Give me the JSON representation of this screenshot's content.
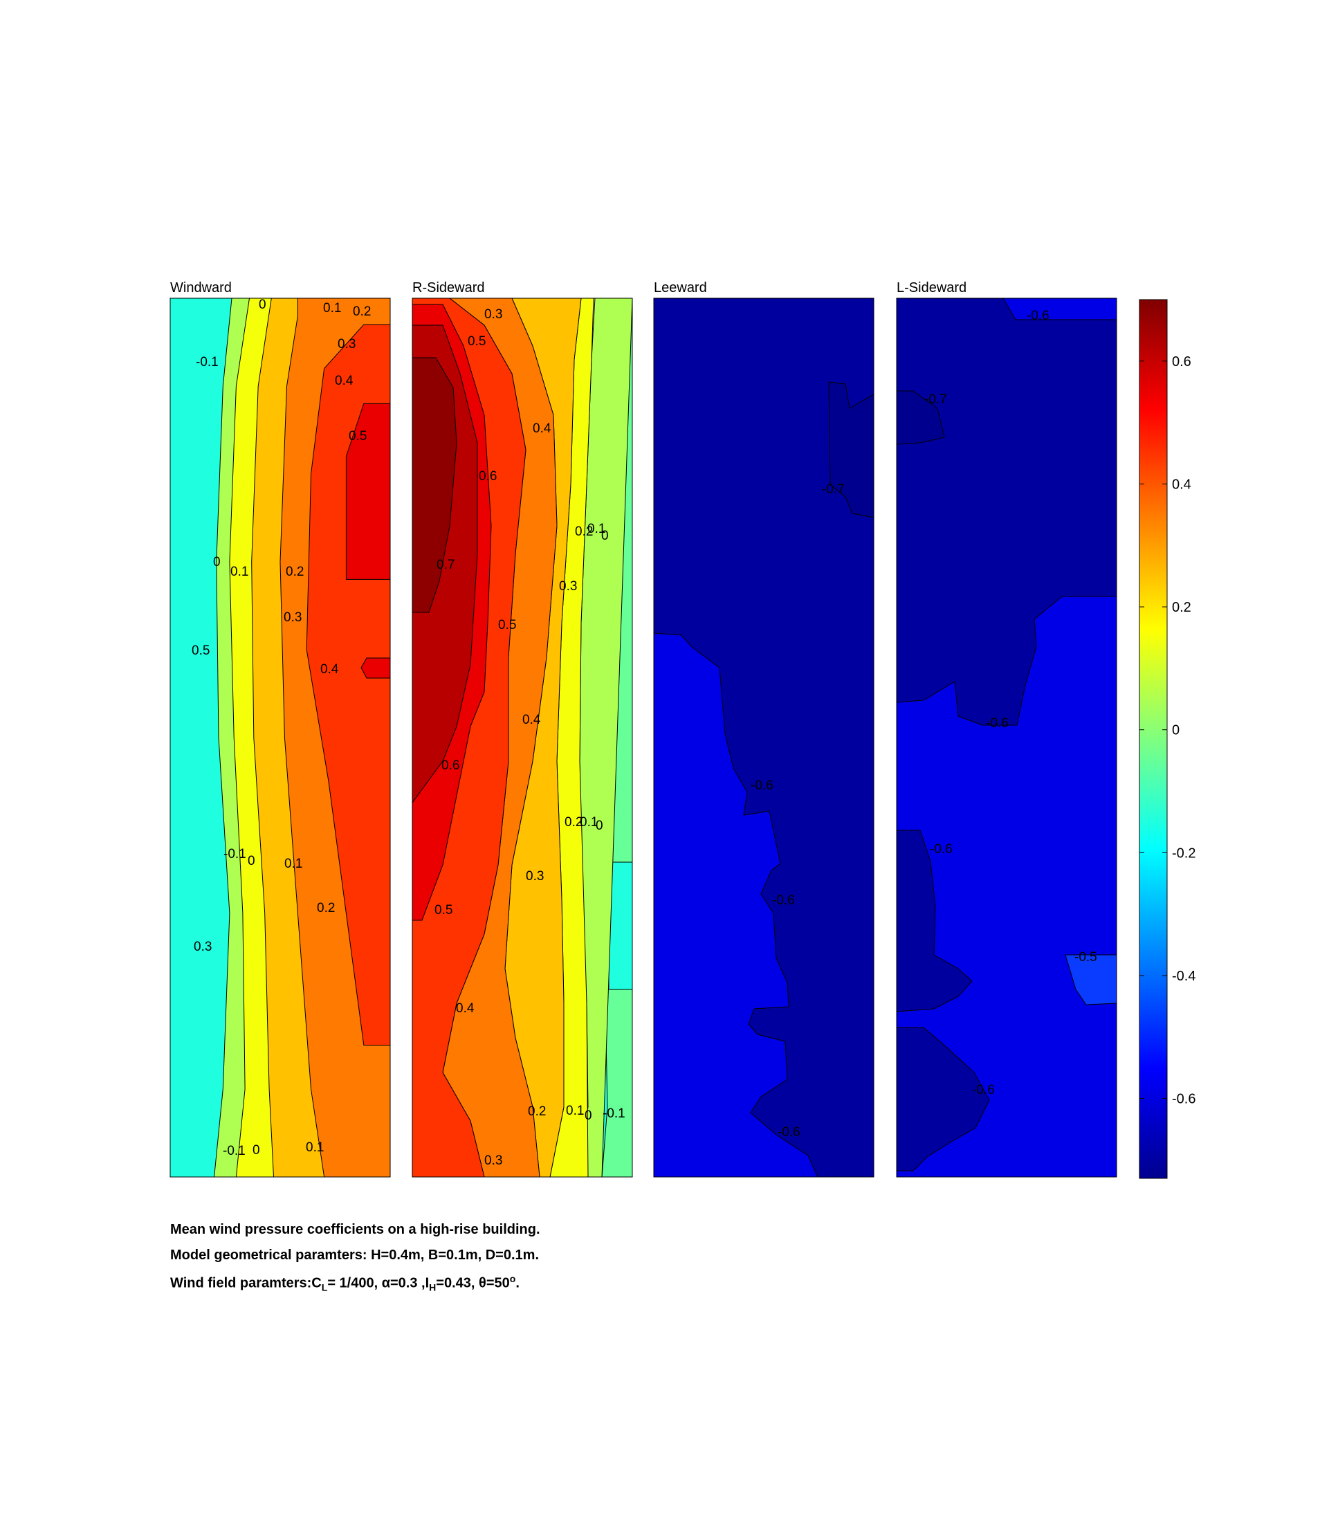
{
  "chart_data": {
    "type": "contour",
    "colormap": "jet",
    "clim": [
      -0.73,
      0.7
    ],
    "colorbar": {
      "ticks": [
        -0.6,
        -0.4,
        -0.2,
        0,
        0.2,
        0.4,
        0.6
      ],
      "tick_labels": [
        "-0.6",
        "-0.4",
        "-0.2",
        "0",
        "0.2",
        "0.4",
        "0.6"
      ]
    },
    "panels": [
      {
        "title": "Windward",
        "columns": [
          {
            "level": -0.15,
            "edge": [
              [
                0.2,
                0.0
              ],
              [
                0.18,
                0.1
              ],
              [
                0.16,
                0.3
              ],
              [
                0.15,
                0.5
              ],
              [
                0.17,
                0.7
              ],
              [
                0.16,
                0.9
              ],
              [
                0.11,
                1.0
              ]
            ]
          },
          {
            "level": -0.05,
            "edge": [
              [
                0.28,
                0.0
              ],
              [
                0.24,
                0.1
              ],
              [
                0.21,
                0.3
              ],
              [
                0.22,
                0.5
              ],
              [
                0.27,
                0.7
              ],
              [
                0.24,
                0.9
              ],
              [
                0.2,
                1.0
              ]
            ]
          },
          {
            "level": 0.05,
            "edge": [
              [
                0.36,
                0.0
              ],
              [
                0.3,
                0.1
              ],
              [
                0.27,
                0.3
              ],
              [
                0.29,
                0.5
              ],
              [
                0.33,
                0.7
              ],
              [
                0.34,
                0.9
              ],
              [
                0.3,
                1.0
              ]
            ]
          },
          {
            "level": 0.15,
            "edge": [
              [
                0.46,
                0.0
              ],
              [
                0.4,
                0.1
              ],
              [
                0.37,
                0.3
              ],
              [
                0.38,
                0.5
              ],
              [
                0.43,
                0.7
              ],
              [
                0.45,
                0.9
              ],
              [
                0.47,
                1.0
              ]
            ]
          },
          {
            "level": 0.25,
            "edge": [
              [
                0.58,
                0.02
              ],
              [
                0.53,
                0.1
              ],
              [
                0.5,
                0.3
              ],
              [
                0.52,
                0.5
              ],
              [
                0.58,
                0.7
              ],
              [
                0.64,
                0.9
              ],
              [
                0.7,
                1.0
              ]
            ]
          },
          {
            "level": 0.35,
            "edge": [
              [
                0.88,
                0.03
              ],
              [
                0.7,
                0.08
              ],
              [
                0.64,
                0.2
              ],
              [
                0.62,
                0.4
              ],
              [
                0.72,
                0.55
              ],
              [
                0.8,
                0.7
              ],
              [
                0.88,
                0.85
              ]
            ]
          },
          {
            "level": 0.45,
            "edge": [
              [
                0.88,
                0.12
              ],
              [
                0.8,
                0.18
              ],
              [
                0.8,
                0.32
              ]
            ]
          }
        ],
        "contour_labels": [
          "0",
          "0.1",
          "0.2",
          "0.3",
          "0.4",
          "0.5",
          "-0.1",
          "0",
          "0.1",
          "0.2",
          "0.3",
          "0.4",
          "0.5",
          "-0.1",
          "0",
          "0.1",
          "0.2",
          "0.3",
          "-0.1",
          "0",
          "0.1",
          "0.2"
        ]
      },
      {
        "title": "R-Sideward",
        "columns": [
          {
            "level": 0.35,
            "edge": [
              [
                0.45,
                0.0
              ],
              [
                0.6,
                0.1
              ],
              [
                0.72,
                0.4
              ],
              [
                0.65,
                0.55
              ],
              [
                0.58,
                0.8
              ],
              [
                0.3,
                1.0
              ]
            ]
          },
          {
            "level": 0.45,
            "edge": [
              [
                0.32,
                0.0
              ],
              [
                0.45,
                0.1
              ],
              [
                0.55,
                0.35
              ],
              [
                0.5,
                0.5
              ],
              [
                0.45,
                0.8
              ],
              [
                0.18,
                0.95
              ]
            ]
          },
          {
            "level": 0.55,
            "edge": [
              [
                0.15,
                0.0
              ],
              [
                0.3,
                0.1
              ],
              [
                0.4,
                0.35
              ],
              [
                0.35,
                0.5
              ],
              [
                0.2,
                0.7
              ]
            ]
          },
          {
            "level": 0.65,
            "edge": [
              [
                0.1,
                0.05
              ],
              [
                0.2,
                0.2
              ],
              [
                0.25,
                0.35
              ],
              [
                0.15,
                0.5
              ],
              [
                0.1,
                0.58
              ]
            ]
          }
        ],
        "contour_labels": [
          "0.3",
          "0.5",
          "0.4",
          "0.6",
          "0.2",
          "0.1",
          "0",
          "0.7",
          "0.3",
          "0.5",
          "0.4",
          "0.6",
          "0.2",
          "0.1",
          "0",
          "0.5",
          "0.3",
          "0.4",
          "0.2",
          "0.1",
          "0",
          "-0.1",
          "0.3"
        ]
      },
      {
        "title": "Leeward",
        "contour_labels": [
          "-0.7",
          "-0.6",
          "-0.6",
          "-0.6"
        ]
      },
      {
        "title": "L-Sideward",
        "contour_labels": [
          "-0.6",
          "-0.7",
          "-0.6",
          "-0.6",
          "-0.5",
          "-0.6"
        ]
      }
    ]
  },
  "caption": {
    "line1": "Mean wind pressure coefficients on a high-rise building.",
    "line2": "Model geometrical paramters: H=0.4m, B=0.1m, D=0.1m.",
    "line3_a": "Wind field paramters:C",
    "line3_b": "L",
    "line3_c": "= 1/400, α=0.3 ,I",
    "line3_d": "H",
    "line3_e": "=0.43, θ=50",
    "line3_f": "o",
    "line3_g": "."
  }
}
